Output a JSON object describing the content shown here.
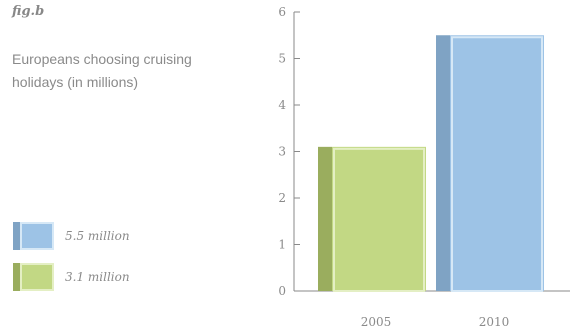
{
  "fig_label": "fig.b",
  "subtitle": "Europeans choosing cruising holidays (in millions)",
  "legend": [
    {
      "label": "5.5 million",
      "face": "#9dc3e6",
      "side": "#7fa3c4",
      "border": "#d6e8f6"
    },
    {
      "label": "3.1 million",
      "face": "#c2d884",
      "side": "#9aad5e",
      "border": "#e4efc4"
    }
  ],
  "chart_data": {
    "type": "bar",
    "categories": [
      "2005",
      "2010"
    ],
    "values": [
      3.1,
      5.5
    ],
    "title": "",
    "xlabel": "",
    "ylabel": "",
    "ylim": [
      0,
      6
    ],
    "yticks": [
      "0",
      "1",
      "2",
      "3",
      "4",
      "5",
      "6"
    ],
    "grid": false,
    "colors": [
      {
        "face": "#c2d884",
        "side": "#9aad5e",
        "border": "#e4efc4"
      },
      {
        "face": "#9dc3e6",
        "side": "#7fa3c4",
        "border": "#d6e8f6"
      }
    ]
  }
}
